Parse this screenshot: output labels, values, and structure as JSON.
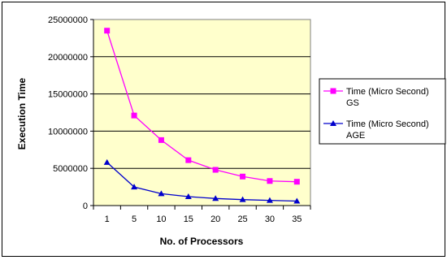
{
  "chart_data": {
    "type": "line",
    "x": [
      1,
      5,
      10,
      15,
      20,
      25,
      30,
      35
    ],
    "series": [
      {
        "name": "Time (Micro Second) GS",
        "name_lines": [
          "Time (Micro Second)",
          "GS"
        ],
        "values": [
          23500000,
          12100000,
          8800000,
          6100000,
          4800000,
          3900000,
          3300000,
          3200000
        ],
        "color": "#ff00ff",
        "marker": "square"
      },
      {
        "name": "Time (Micro Second) AGE",
        "name_lines": [
          "Time (Micro Second)",
          "AGE"
        ],
        "values": [
          5800000,
          2500000,
          1600000,
          1200000,
          950000,
          800000,
          700000,
          600000
        ],
        "color": "#0000cc",
        "marker": "triangle"
      }
    ],
    "xlabel": "No. of Processors",
    "ylabel": "Execution Time",
    "ylim": [
      0,
      25000000
    ],
    "yticks": [
      0,
      5000000,
      10000000,
      15000000,
      20000000,
      25000000
    ],
    "grid": true,
    "legend": "right",
    "plot_background": "#ffffcc",
    "title": ""
  }
}
